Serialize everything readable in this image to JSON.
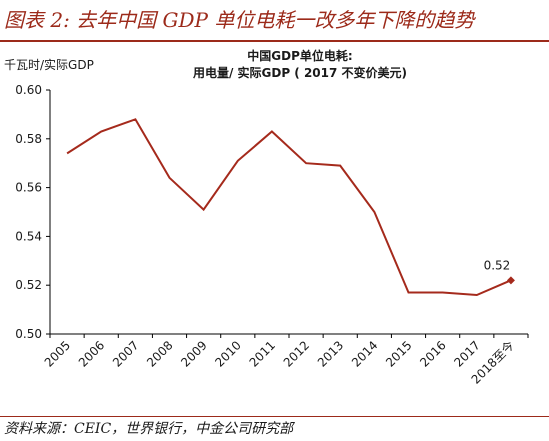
{
  "figure": {
    "title": "图表 2:  去年中国 GDP 单位电耗一改多年下降的趋势",
    "source": "资料来源：CEIC，世界银行，中金公司研究部"
  },
  "chart_data": {
    "type": "line",
    "title_line1": "中国GDP单位电耗:",
    "title_line2": "用电量/ 实际GDP ( 2017 不变价美元)",
    "ylabel": "千瓦时/实际GDP",
    "xlabel": "",
    "categories": [
      "2005",
      "2006",
      "2007",
      "2008",
      "2009",
      "2010",
      "2011",
      "2012",
      "2013",
      "2014",
      "2015",
      "2016",
      "2017",
      "2018至今"
    ],
    "values": [
      0.574,
      0.583,
      0.588,
      0.564,
      0.551,
      0.571,
      0.583,
      0.57,
      0.569,
      0.55,
      0.517,
      0.517,
      0.516,
      0.522
    ],
    "y_ticks": [
      "0.60",
      "0.58",
      "0.56",
      "0.54",
      "0.52",
      "0.50"
    ],
    "ylim": [
      0.5,
      0.6
    ],
    "grid": false,
    "last_point_label": "0.52",
    "colors": {
      "line": "#a52a1c",
      "accent": "#9c2a1a",
      "axis": "#000000"
    }
  }
}
